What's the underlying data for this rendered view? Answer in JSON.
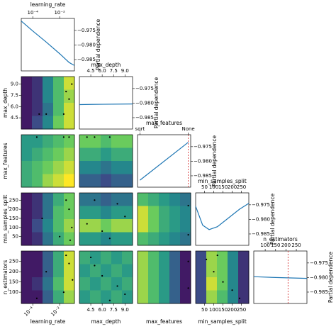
{
  "chart_data": {
    "type": "partial-dependence-matrix",
    "ylabel": "Partial dependence",
    "pd_lim": [
      -0.9889,
      -0.9709
    ],
    "pd_ticks": [
      {
        "value": -0.975,
        "label": "−0.975"
      },
      {
        "value": -0.98,
        "label": "−0.980"
      },
      {
        "value": -0.985,
        "label": "−0.985"
      }
    ],
    "zlim": [
      -0.987,
      -0.974
    ],
    "colormap": "viridis",
    "line_color": "#1f77b4",
    "best_color": "#d62728",
    "point_color": "#000000",
    "dimensions": [
      {
        "name": "learning_rate",
        "lim": [
          1.4e-05,
          0.125
        ],
        "log": true,
        "outer_ticks": true,
        "ticks": [
          {
            "value": 0.0001,
            "label": "10⁻⁴"
          },
          {
            "value": 0.01,
            "label": "10⁻²"
          }
        ]
      },
      {
        "name": "max_depth",
        "lim": [
          3,
          10
        ],
        "log": false,
        "outer_ticks": true,
        "ticks": [
          4.5,
          {
            "value": 6,
            "label": "6.0"
          },
          7.5,
          {
            "value": 9,
            "label": "9.0"
          }
        ]
      },
      {
        "name": "max_features",
        "lim": [
          -0.05,
          1.05
        ],
        "log": false,
        "outer_ticks": false,
        "ticks": [
          {
            "value": 0,
            "label": "sqrt"
          },
          {
            "value": 1,
            "label": "None"
          }
        ]
      },
      {
        "name": "min_samples_split",
        "lim": [
          2,
          290
        ],
        "log": false,
        "outer_ticks": true,
        "ticks": [
          50,
          100,
          150,
          200,
          250
        ]
      },
      {
        "name": "n_estimators",
        "lim": [
          45,
          301
        ],
        "log": false,
        "outer_ticks": true,
        "ticks": [
          100,
          150,
          200,
          250
        ]
      }
    ],
    "panels": [
      {
        "type": "line",
        "dim": 0,
        "x": [
          1.4e-05,
          0.0001,
          0.001,
          0.01,
          0.05,
          0.1,
          0.125
        ],
        "values": [
          -0.9718,
          -0.9752,
          -0.979,
          -0.983,
          -0.986,
          -0.9868,
          -0.987
        ]
      },
      {
        "type": "contour",
        "xdim": 0,
        "ydim": 1,
        "z": [
          [
            -0.986,
            -0.985,
            -0.981,
            -0.978,
            -0.975
          ],
          [
            -0.986,
            -0.985,
            -0.981,
            -0.978,
            -0.976
          ],
          [
            -0.986,
            -0.985,
            -0.982,
            -0.978,
            -0.975
          ],
          [
            -0.986,
            -0.984,
            -0.981,
            -0.977,
            -0.975
          ]
        ],
        "points": {
          "x": [
            0.02,
            0.03,
            0.05,
            0.001,
            0.0003,
            0.08
          ],
          "y": [
            5,
            8,
            7,
            5,
            5,
            9
          ]
        }
      },
      {
        "type": "line",
        "dim": 1,
        "x": [
          3,
          6,
          10
        ],
        "values": [
          -0.9805,
          -0.9804,
          -0.9803
        ]
      },
      {
        "type": "contour",
        "xdim": 0,
        "ydim": 2,
        "z": [
          [
            -0.98,
            -0.98,
            -0.979,
            -0.978,
            -0.977
          ],
          [
            -0.98,
            -0.979,
            -0.978,
            -0.977,
            -0.976
          ],
          [
            -0.979,
            -0.978,
            -0.977,
            -0.976,
            -0.975
          ],
          [
            -0.979,
            -0.978,
            -0.976,
            -0.975,
            -0.974
          ]
        ],
        "points": {
          "x": [
            0.0002,
            0.02,
            0.05
          ],
          "y": [
            1,
            1,
            1
          ]
        }
      },
      {
        "type": "contour",
        "xdim": 1,
        "ydim": 2,
        "z": [
          [
            -0.977,
            -0.977,
            -0.978,
            -0.977,
            -0.977
          ],
          [
            -0.979,
            -0.979,
            -0.98,
            -0.979,
            -0.979
          ],
          [
            -0.981,
            -0.981,
            -0.982,
            -0.981,
            -0.981
          ],
          [
            -0.983,
            -0.983,
            -0.984,
            -0.983,
            -0.983
          ]
        ],
        "points": {
          "x": [
            4,
            5,
            7
          ],
          "y": [
            1,
            1,
            1
          ]
        }
      },
      {
        "type": "line",
        "dim": 2,
        "x": [
          0,
          1
        ],
        "values": [
          -0.9865,
          -0.9735
        ],
        "best": 1
      },
      {
        "type": "contour",
        "xdim": 0,
        "ydim": 3,
        "z": [
          [
            -0.986,
            -0.985,
            -0.982,
            -0.979,
            -0.977
          ],
          [
            -0.986,
            -0.985,
            -0.982,
            -0.978,
            -0.977
          ],
          [
            -0.986,
            -0.984,
            -0.981,
            -0.978,
            -0.976
          ],
          [
            -0.986,
            -0.985,
            -0.982,
            -0.979,
            -0.977
          ]
        ],
        "points": {
          "x": [
            0.03,
            0.05,
            0.0005,
            0.08,
            0.01,
            0.06
          ],
          "y": [
            250,
            200,
            150,
            100,
            50,
            30
          ]
        }
      },
      {
        "type": "contour",
        "xdim": 1,
        "ydim": 3,
        "z": [
          [
            -0.982,
            -0.982,
            -0.983,
            -0.982,
            -0.982
          ],
          [
            -0.98,
            -0.98,
            -0.981,
            -0.98,
            -0.98
          ],
          [
            -0.976,
            -0.976,
            -0.977,
            -0.976,
            -0.976
          ],
          [
            -0.98,
            -0.98,
            -0.981,
            -0.98,
            -0.98
          ]
        ],
        "points": {
          "x": [
            5,
            8,
            9,
            4,
            6,
            7
          ],
          "y": [
            250,
            230,
            160,
            120,
            80,
            40
          ]
        }
      },
      {
        "type": "contour",
        "xdim": 2,
        "ydim": 3,
        "z": [
          [
            -0.978,
            -0.979,
            -0.98,
            -0.981,
            -0.982
          ],
          [
            -0.975,
            -0.977,
            -0.979,
            -0.98,
            -0.981
          ],
          [
            -0.975,
            -0.977,
            -0.979,
            -0.98,
            -0.981
          ],
          [
            -0.978,
            -0.979,
            -0.98,
            -0.981,
            -0.982
          ]
        ],
        "points": {
          "x": [
            1,
            1
          ],
          "y": [
            60,
            220
          ]
        }
      },
      {
        "type": "line",
        "dim": 3,
        "x": [
          2,
          40,
          75,
          120,
          180,
          240,
          290
        ],
        "values": [
          -0.9755,
          -0.982,
          -0.9835,
          -0.9825,
          -0.9795,
          -0.9765,
          -0.9745
        ]
      },
      {
        "type": "contour",
        "xdim": 0,
        "ydim": 4,
        "z": [
          [
            -0.986,
            -0.986,
            -0.983,
            -0.979,
            -0.975
          ],
          [
            -0.986,
            -0.986,
            -0.983,
            -0.979,
            -0.975
          ],
          [
            -0.986,
            -0.985,
            -0.982,
            -0.978,
            -0.975
          ],
          [
            -0.986,
            -0.986,
            -0.983,
            -0.979,
            -0.976
          ]
        ],
        "points": {
          "x": [
            0.03,
            0.05,
            0.001,
            0.09,
            0.02,
            0.0002
          ],
          "y": [
            280,
            240,
            200,
            160,
            100,
            70
          ]
        }
      },
      {
        "type": "contour",
        "xdim": 1,
        "ydim": 4,
        "z": [
          [
            -0.979,
            -0.98,
            -0.979,
            -0.98,
            -0.979
          ],
          [
            -0.98,
            -0.979,
            -0.98,
            -0.979,
            -0.98
          ],
          [
            -0.979,
            -0.98,
            -0.979,
            -0.98,
            -0.979
          ],
          [
            -0.98,
            -0.979,
            -0.98,
            -0.979,
            -0.98
          ]
        ],
        "points": {
          "x": [
            4.5,
            5,
            6,
            8,
            9,
            7
          ],
          "y": [
            270,
            230,
            180,
            130,
            90,
            60
          ]
        }
      },
      {
        "type": "contour",
        "xdim": 2,
        "ydim": 4,
        "z": [
          [
            -0.976,
            -0.978,
            -0.98,
            -0.983,
            -0.986
          ],
          [
            -0.976,
            -0.978,
            -0.98,
            -0.983,
            -0.986
          ],
          [
            -0.976,
            -0.978,
            -0.98,
            -0.983,
            -0.986
          ],
          [
            -0.976,
            -0.978,
            -0.98,
            -0.983,
            -0.986
          ]
        ],
        "points": {
          "x": [
            1,
            1
          ],
          "y": [
            120,
            250
          ]
        }
      },
      {
        "type": "contour",
        "xdim": 3,
        "ydim": 4,
        "z": [
          [
            -0.984,
            -0.976,
            -0.977,
            -0.981,
            -0.985
          ],
          [
            -0.984,
            -0.976,
            -0.977,
            -0.981,
            -0.985
          ],
          [
            -0.984,
            -0.975,
            -0.977,
            -0.981,
            -0.985
          ],
          [
            -0.984,
            -0.976,
            -0.978,
            -0.981,
            -0.985
          ]
        ],
        "points": {
          "x": [
            60,
            100,
            150,
            200,
            240,
            120
          ],
          "y": [
            260,
            200,
            150,
            110,
            70,
            280
          ]
        }
      },
      {
        "type": "line",
        "dim": 4,
        "x": [
          45,
          150,
          301
        ],
        "values": [
          -0.9797,
          -0.98,
          -0.9803
        ],
        "best": 210
      }
    ]
  }
}
